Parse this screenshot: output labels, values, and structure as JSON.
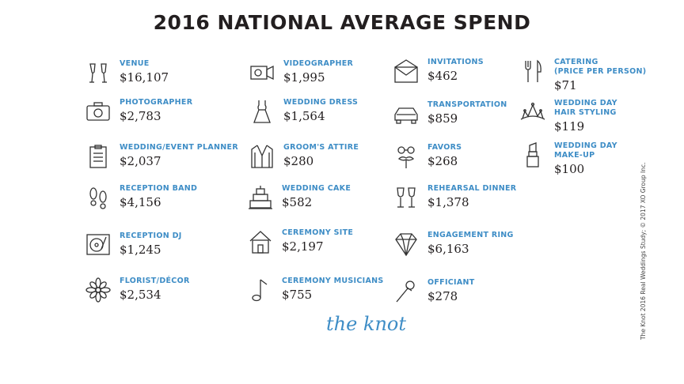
{
  "title": "2016 NATIONAL AVERAGE SPEND",
  "logo": "the knot",
  "credit": "The Knot 2016 Real Weddings Study; © 2017 XO Group Inc.",
  "colors": {
    "accent": "#3e8dc6",
    "text": "#231f20"
  },
  "items": [
    {
      "label": "VENUE",
      "amount": "$16,107",
      "icon": "champagne-glasses-icon"
    },
    {
      "label": "PHOTOGRAPHER",
      "amount": "$2,783",
      "icon": "camera-icon"
    },
    {
      "label": "WEDDING/EVENT PLANNER",
      "amount": "$2,037",
      "icon": "clipboard-icon"
    },
    {
      "label": "RECEPTION BAND",
      "amount": "$4,156",
      "icon": "footprints-icon"
    },
    {
      "label": "RECEPTION DJ",
      "amount": "$1,245",
      "icon": "turntable-icon"
    },
    {
      "label": "FLORIST/DÉCOR",
      "amount": "$2,534",
      "icon": "flower-icon"
    },
    {
      "label": "VIDEOGRAPHER",
      "amount": "$1,995",
      "icon": "video-camera-icon"
    },
    {
      "label": "WEDDING DRESS",
      "amount": "$1,564",
      "icon": "dress-icon"
    },
    {
      "label": "GROOM'S ATTIRE",
      "amount": "$280",
      "icon": "tuxedo-icon"
    },
    {
      "label": "WEDDING CAKE",
      "amount": "$582",
      "icon": "cake-icon"
    },
    {
      "label": "CEREMONY SITE",
      "amount": "$2,197",
      "icon": "house-icon"
    },
    {
      "label": "CEREMONY MUSICIANS",
      "amount": "$755",
      "icon": "music-note-icon"
    },
    {
      "label": "INVITATIONS",
      "amount": "$462",
      "icon": "envelope-icon"
    },
    {
      "label": "TRANSPORTATION",
      "amount": "$859",
      "icon": "car-icon"
    },
    {
      "label": "FAVORS",
      "amount": "$268",
      "icon": "mustache-prop-icon"
    },
    {
      "label": "REHEARSAL DINNER",
      "amount": "$1,378",
      "icon": "wine-glasses-icon"
    },
    {
      "label": "ENGAGEMENT RING",
      "amount": "$6,163",
      "icon": "diamond-icon"
    },
    {
      "label": "OFFICIANT",
      "amount": "$278",
      "icon": "microphone-icon"
    },
    {
      "label": "CATERING\n(PRICE PER PERSON)",
      "amount": "$71",
      "icon": "fork-knife-icon"
    },
    {
      "label": "WEDDING DAY\nHAIR STYLING",
      "amount": "$119",
      "icon": "tiara-icon"
    },
    {
      "label": "WEDDING DAY\nMAKE-UP",
      "amount": "$100",
      "icon": "lipstick-icon"
    }
  ]
}
